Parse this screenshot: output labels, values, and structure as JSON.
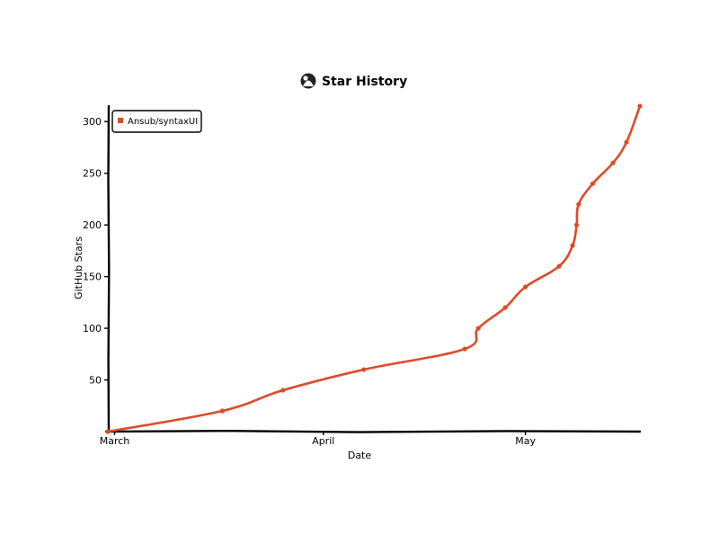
{
  "chart_data": {
    "type": "line",
    "title": "Star History",
    "xlabel": "Date",
    "ylabel": "GitHub Stars",
    "x_tick_labels": [
      "March",
      "April",
      "May"
    ],
    "y_ticks": [
      50,
      100,
      150,
      200,
      250,
      300
    ],
    "ylim": [
      0,
      315
    ],
    "grid": false,
    "legend_position": "top-left",
    "series": [
      {
        "name": "Ansub/syntaxUI",
        "color": "#dd4b29",
        "points": [
          {
            "day": 0,
            "stars": 0
          },
          {
            "day": 17,
            "stars": 20
          },
          {
            "day": 26,
            "stars": 40
          },
          {
            "day": 38,
            "stars": 60
          },
          {
            "day": 53,
            "stars": 80
          },
          {
            "day": 55,
            "stars": 100
          },
          {
            "day": 59,
            "stars": 120
          },
          {
            "day": 62,
            "stars": 140
          },
          {
            "day": 67,
            "stars": 160
          },
          {
            "day": 69,
            "stars": 180
          },
          {
            "day": 69.6,
            "stars": 200
          },
          {
            "day": 69.9,
            "stars": 220
          },
          {
            "day": 72,
            "stars": 240
          },
          {
            "day": 75,
            "stars": 260
          },
          {
            "day": 77,
            "stars": 280
          },
          {
            "day": 79,
            "stars": 315
          }
        ]
      }
    ]
  }
}
